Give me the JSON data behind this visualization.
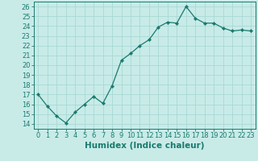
{
  "x": [
    0,
    1,
    2,
    3,
    4,
    5,
    6,
    7,
    8,
    9,
    10,
    11,
    12,
    13,
    14,
    15,
    16,
    17,
    18,
    19,
    20,
    21,
    22,
    23
  ],
  "y": [
    17.0,
    15.8,
    14.8,
    14.1,
    15.2,
    16.0,
    16.8,
    16.1,
    17.9,
    20.5,
    21.2,
    22.0,
    22.6,
    23.9,
    24.4,
    24.3,
    26.0,
    24.8,
    24.3,
    24.3,
    23.8,
    23.5,
    23.6,
    23.5
  ],
  "line_color": "#1a7a6e",
  "marker": "D",
  "marker_size": 2.2,
  "bg_color": "#c8ebe8",
  "grid_color": "#a8d8d4",
  "xlabel": "Humidex (Indice chaleur)",
  "xlim": [
    -0.5,
    23.5
  ],
  "ylim": [
    13.5,
    26.5
  ],
  "yticks": [
    14,
    15,
    16,
    17,
    18,
    19,
    20,
    21,
    22,
    23,
    24,
    25,
    26
  ],
  "xticks": [
    0,
    1,
    2,
    3,
    4,
    5,
    6,
    7,
    8,
    9,
    10,
    11,
    12,
    13,
    14,
    15,
    16,
    17,
    18,
    19,
    20,
    21,
    22,
    23
  ],
  "xlabel_fontsize": 7.5,
  "tick_fontsize": 6.0
}
